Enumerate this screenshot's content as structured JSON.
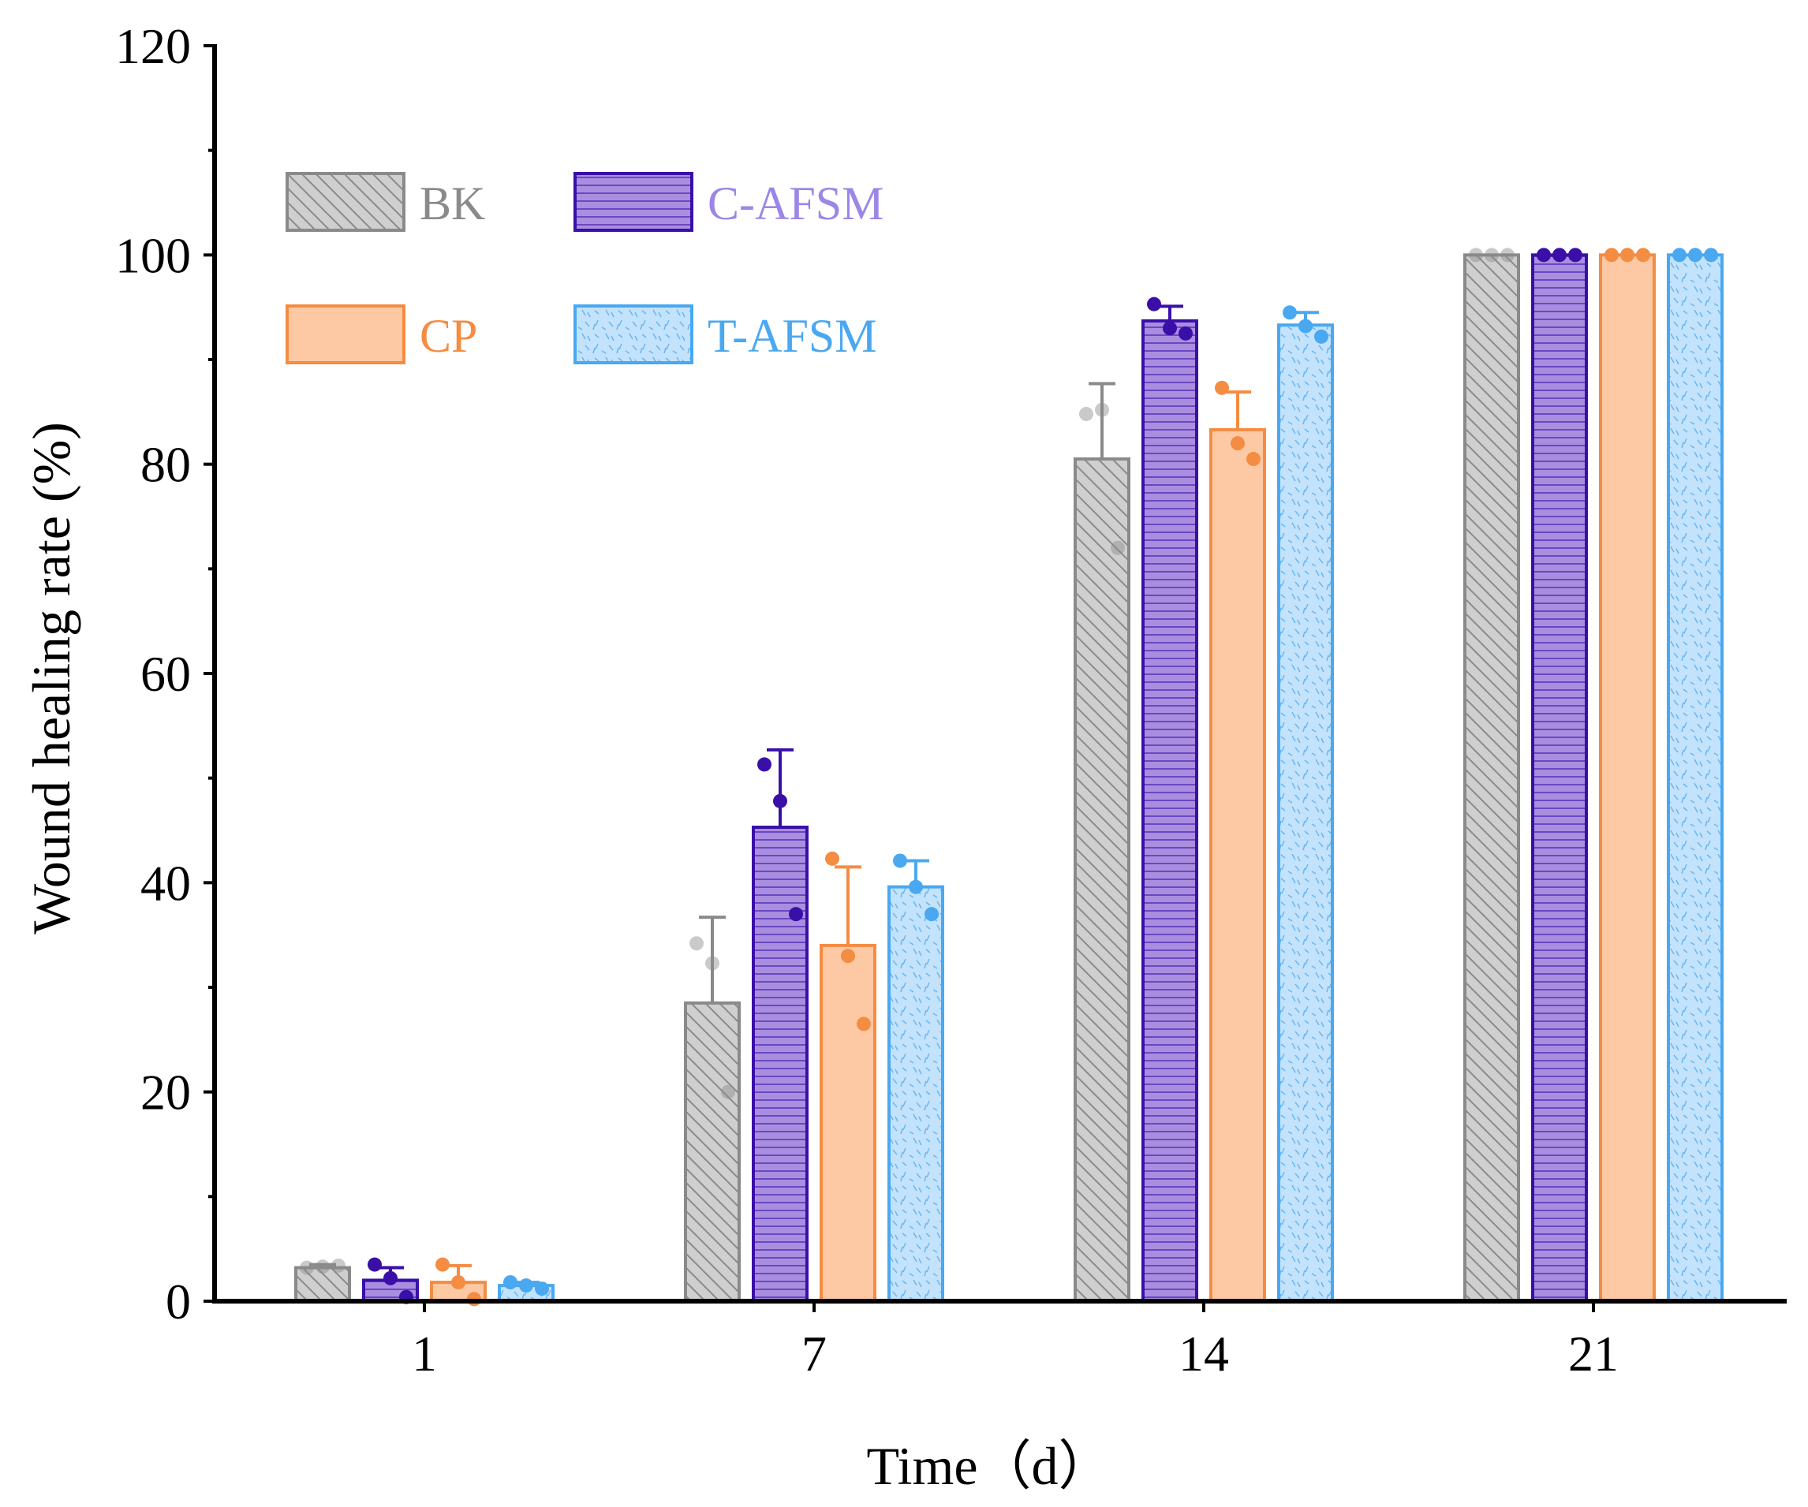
{
  "chart_data": {
    "type": "bar",
    "title": "",
    "xlabel": "Time（d）",
    "ylabel": "Wound healing rate (%)",
    "ylim": [
      0,
      120
    ],
    "y_ticks": [
      0,
      20,
      40,
      60,
      80,
      100,
      120
    ],
    "y_tick_labels": [
      "0",
      "20",
      "40",
      "60",
      "80",
      "100",
      "120"
    ],
    "categories": [
      "1",
      "7",
      "14",
      "21"
    ],
    "grid": false,
    "legend_position": "top-left",
    "series": [
      {
        "name": "BK",
        "color": "#8a8a8a",
        "fill": "#cfcfcf",
        "pattern": "diagonal",
        "values": [
          3.2,
          28.5,
          80.5,
          100
        ],
        "errors": [
          0.3,
          8.2,
          7.2,
          0
        ],
        "points": [
          [
            3.2,
            3.3,
            3.4
          ],
          [
            34.2,
            32.3,
            20.0
          ],
          [
            84.8,
            85.2,
            72.0
          ],
          [
            100,
            100,
            100
          ]
        ]
      },
      {
        "name": "C-AFSM",
        "color": "#3a0fa8",
        "fill": "#a98ee0",
        "pattern": "horizontal",
        "values": [
          2.0,
          45.3,
          93.7,
          100
        ],
        "errors": [
          1.2,
          7.4,
          1.4,
          0
        ],
        "points": [
          [
            3.5,
            2.2,
            0.4
          ],
          [
            51.3,
            47.8,
            37.0
          ],
          [
            95.3,
            93.0,
            92.5
          ],
          [
            100,
            100,
            100
          ]
        ]
      },
      {
        "name": "CP",
        "color": "#f48c42",
        "fill": "#fcc9a4",
        "pattern": "solid",
        "values": [
          1.8,
          34.0,
          83.3,
          100
        ],
        "errors": [
          1.6,
          7.5,
          3.6,
          0
        ],
        "points": [
          [
            3.5,
            1.8,
            0.2
          ],
          [
            42.3,
            33.0,
            26.5
          ],
          [
            87.3,
            82.0,
            80.5
          ],
          [
            100,
            100,
            100
          ]
        ]
      },
      {
        "name": "T-AFSM",
        "color": "#4aa8f0",
        "fill": "#c3e2fb",
        "pattern": "dots",
        "values": [
          1.5,
          39.6,
          93.3,
          100
        ],
        "errors": [
          0.3,
          2.5,
          1.2,
          0
        ],
        "points": [
          [
            1.8,
            1.5,
            1.2
          ],
          [
            42.1,
            39.6,
            37.0
          ],
          [
            94.5,
            93.2,
            92.2
          ],
          [
            100,
            100,
            100
          ]
        ]
      }
    ]
  }
}
